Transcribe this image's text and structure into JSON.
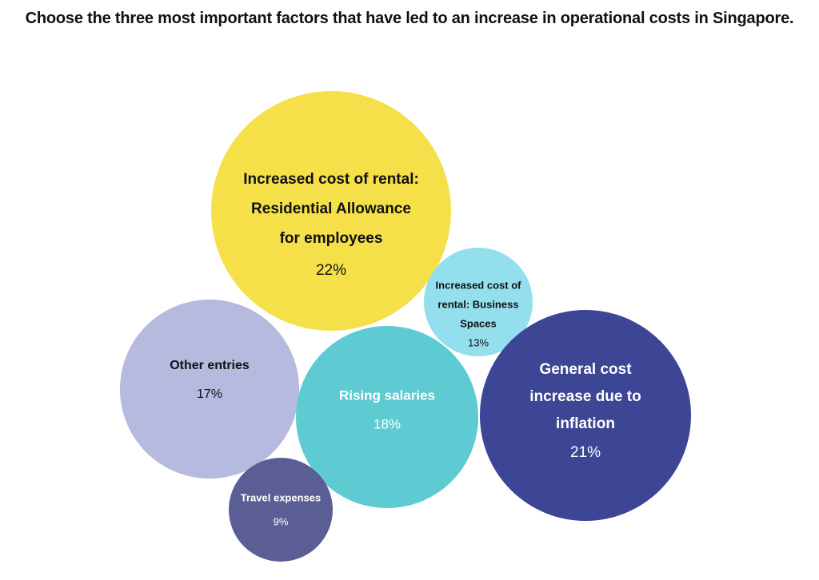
{
  "chart_data": {
    "type": "bubble",
    "title": "Choose the three most important factors that have led to an increase in operational costs in Singapore.",
    "unit": "%",
    "bubbles": [
      {
        "key": "residential-allowance",
        "label_lines": [
          "Increased cost of rental:",
          "Residential Allowance",
          "for employees"
        ],
        "value_label": "22%",
        "value": 22,
        "color": "#f5e04a",
        "text_color": "#111111"
      },
      {
        "key": "business-spaces",
        "label_lines": [
          "Increased cost of",
          "rental: Business",
          "Spaces"
        ],
        "value_label": "13%",
        "value": 13,
        "color": "#93dfee",
        "text_color": "#111111"
      },
      {
        "key": "other-entries",
        "label_lines": [
          "Other entries"
        ],
        "value_label": "17%",
        "value": 17,
        "color": "#b5bade",
        "text_color": "#111111"
      },
      {
        "key": "rising-salaries",
        "label_lines": [
          "Rising salaries"
        ],
        "value_label": "18%",
        "value": 18,
        "color": "#5ecbd3",
        "text_color": "#ffffff"
      },
      {
        "key": "inflation",
        "label_lines": [
          "General cost",
          "increase due to",
          "inflation"
        ],
        "value_label": "21%",
        "value": 21,
        "color": "#3d4595",
        "text_color": "#ffffff"
      },
      {
        "key": "travel-expenses",
        "label_lines": [
          "Travel expenses"
        ],
        "value_label": "9%",
        "value": 9,
        "color": "#5a5e95",
        "text_color": "#ffffff"
      }
    ]
  }
}
